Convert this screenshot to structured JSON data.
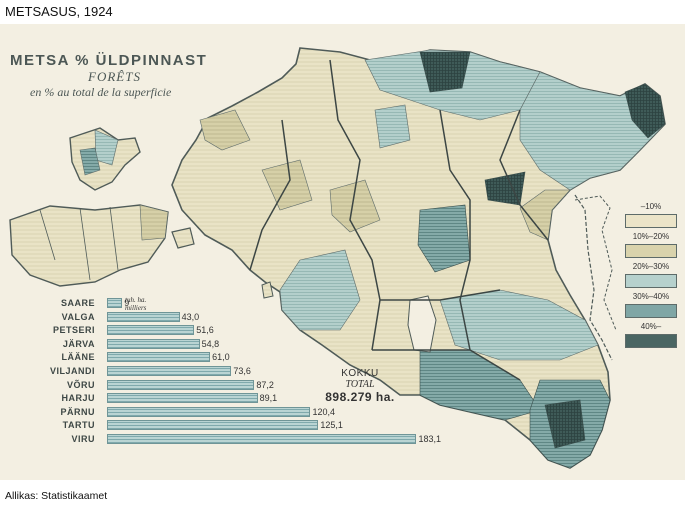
{
  "page": {
    "title": "METSASUS, 1924",
    "source": "Allikas: Statistikaamet"
  },
  "map": {
    "title": "METSA % ÜLDPINNAST",
    "subtitle_fr": "FORÊTS",
    "subtitle_fr2": "en % au total de la superficie",
    "legend": [
      {
        "label": "–10%",
        "color": "#ebe4c8"
      },
      {
        "label": "10%–20%",
        "color": "#d9d3ac"
      },
      {
        "label": "20%–30%",
        "color": "#b6d1cd"
      },
      {
        "label": "30%–40%",
        "color": "#7fa6a5"
      },
      {
        "label": "40%–",
        "color": "#4a6663"
      }
    ],
    "bars": {
      "unit_line1": "tuh. ha.",
      "unit_line2": "milliers",
      "items": [
        {
          "county": "SAARE",
          "value": 9,
          "value_label": "9"
        },
        {
          "county": "VALGA",
          "value": 43.0,
          "value_label": "43,0"
        },
        {
          "county": "PETSERI",
          "value": 51.6,
          "value_label": "51,6"
        },
        {
          "county": "JÄRVA",
          "value": 54.8,
          "value_label": "54,8"
        },
        {
          "county": "LÄÄNE",
          "value": 61.0,
          "value_label": "61,0"
        },
        {
          "county": "VILJANDI",
          "value": 73.6,
          "value_label": "73,6"
        },
        {
          "county": "VÕRU",
          "value": 87.2,
          "value_label": "87,2"
        },
        {
          "county": "HARJU",
          "value": 89.1,
          "value_label": "89,1"
        },
        {
          "county": "PÄRNU",
          "value": 120.4,
          "value_label": "120,4"
        },
        {
          "county": "TARTU",
          "value": 125.1,
          "value_label": "125,1"
        },
        {
          "county": "VIRU",
          "value": 183.1,
          "value_label": "183,1"
        }
      ]
    },
    "total": {
      "label_et": "KOKKU",
      "label_fr": "TOTAL",
      "value": "898.279 ha."
    }
  }
}
